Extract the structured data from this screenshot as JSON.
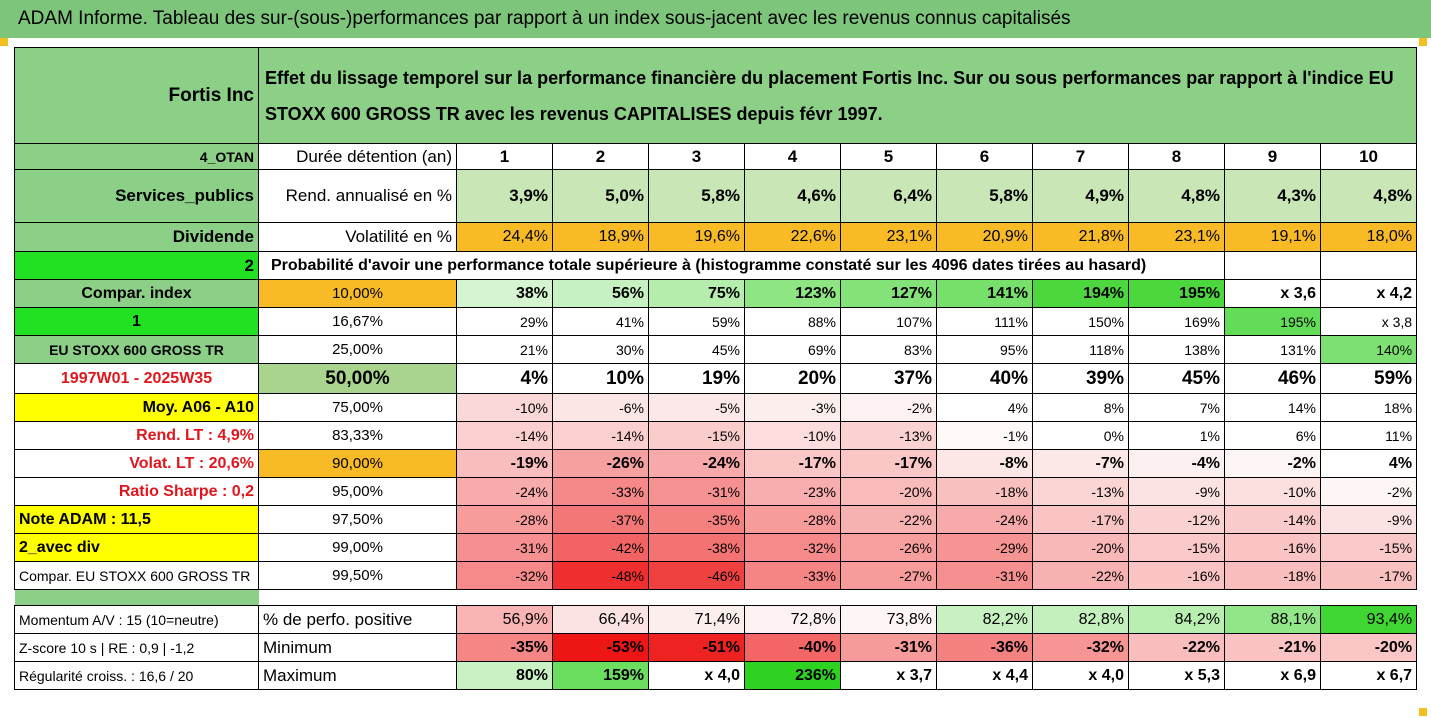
{
  "title": "ADAM Informe. Tableau des sur-(sous-)performances par rapport à un index sous-jacent avec les revenus connus capitalisés",
  "header": {
    "company": "Fortis Inc",
    "description_line1": "Effet du lissage temporel sur la performance financière du placement Fortis Inc. Sur ou sous performances par rapport à l'indice EU",
    "description_line2": "STOXX 600 GROSS TR avec les revenus CAPITALISES depuis févr 1997."
  },
  "colors": {
    "title_bg": "#7dc57a",
    "label_bg": "#8ccf87",
    "orange": "#f8bb26",
    "bright_green": "#22e022",
    "yellow": "#ffff00",
    "red_text": "#e0161c"
  },
  "labels": {
    "code": "4_OTAN",
    "sector": "Services_publics",
    "type": "Dividende",
    "num2": "2",
    "compar": "Compar. index",
    "num1": "1",
    "index_name": "EU STOXX 600 GROSS TR",
    "period": "1997W01 - 2025W35",
    "moy": "Moy. A06 - A10",
    "rend": "Rend. LT :   4,9%",
    "volat": "Volat. LT :   20,6%",
    "sharpe": "Ratio Sharpe :   0,2",
    "note": "Note ADAM : 11,5",
    "avec_div": "2_avec div",
    "compar_index": "Compar. EU STOXX 600 GROSS TR",
    "momentum": "Momentum A/V : 15 (10=neutre)",
    "zscore": "Z-score 10 s  |  RE : 0,9  |  -1,2",
    "regularite": "Régularité croiss. : 16,6 / 20"
  },
  "duration_label": "Durée détention (an)",
  "years": [
    "1",
    "2",
    "3",
    "4",
    "5",
    "6",
    "7",
    "8",
    "9",
    "10"
  ],
  "rend_label": "Rend. annualisé en %",
  "rend": [
    "3,9%",
    "5,0%",
    "5,8%",
    "4,6%",
    "6,4%",
    "5,8%",
    "4,9%",
    "4,8%",
    "4,3%",
    "4,8%"
  ],
  "vol_label": "Volatilité en %",
  "vol": [
    "24,4%",
    "18,9%",
    "19,6%",
    "22,6%",
    "23,1%",
    "20,9%",
    "21,8%",
    "23,1%",
    "19,1%",
    "18,0%"
  ],
  "prob_text": "Probabilité d'avoir une performance totale supérieure à (histogramme constaté sur les 4096 dates tirées au hasard)",
  "quantiles": [
    {
      "p": "10,00%",
      "v": [
        "38%",
        "56%",
        "75%",
        "123%",
        "127%",
        "141%",
        "194%",
        "195%",
        "x 3,6",
        "x 4,2"
      ]
    },
    {
      "p": "16,67%",
      "v": [
        "29%",
        "41%",
        "59%",
        "88%",
        "107%",
        "111%",
        "150%",
        "169%",
        "195%",
        "x 3,8"
      ]
    },
    {
      "p": "25,00%",
      "v": [
        "21%",
        "30%",
        "45%",
        "69%",
        "83%",
        "95%",
        "118%",
        "138%",
        "131%",
        "140%"
      ]
    },
    {
      "p": "50,00%",
      "v": [
        "4%",
        "10%",
        "19%",
        "20%",
        "37%",
        "40%",
        "39%",
        "45%",
        "46%",
        "59%"
      ]
    },
    {
      "p": "75,00%",
      "v": [
        "-10%",
        "-6%",
        "-5%",
        "-3%",
        "-2%",
        "4%",
        "8%",
        "7%",
        "14%",
        "18%"
      ]
    },
    {
      "p": "83,33%",
      "v": [
        "-14%",
        "-14%",
        "-15%",
        "-10%",
        "-13%",
        "-1%",
        "0%",
        "1%",
        "6%",
        "11%"
      ]
    },
    {
      "p": "90,00%",
      "v": [
        "-19%",
        "-26%",
        "-24%",
        "-17%",
        "-17%",
        "-8%",
        "-7%",
        "-4%",
        "-2%",
        "4%"
      ]
    },
    {
      "p": "95,00%",
      "v": [
        "-24%",
        "-33%",
        "-31%",
        "-23%",
        "-20%",
        "-18%",
        "-13%",
        "-9%",
        "-10%",
        "-2%"
      ]
    },
    {
      "p": "97,50%",
      "v": [
        "-28%",
        "-37%",
        "-35%",
        "-28%",
        "-22%",
        "-24%",
        "-17%",
        "-12%",
        "-14%",
        "-9%"
      ]
    },
    {
      "p": "99,00%",
      "v": [
        "-31%",
        "-42%",
        "-38%",
        "-32%",
        "-26%",
        "-29%",
        "-20%",
        "-15%",
        "-16%",
        "-15%"
      ]
    },
    {
      "p": "99,50%",
      "v": [
        "-32%",
        "-48%",
        "-46%",
        "-33%",
        "-27%",
        "-31%",
        "-22%",
        "-16%",
        "-18%",
        "-17%"
      ]
    }
  ],
  "quantile_colors": [
    [
      "#d5f5d0",
      "#c6f1c0",
      "#b4edac",
      "#8ee683",
      "#84e378",
      "#76e06a",
      "#4cd73f",
      "#4cd73f",
      "#ffffff",
      "#ffffff"
    ],
    [
      "#ffffff",
      "#ffffff",
      "#ffffff",
      "#ffffff",
      "#ffffff",
      "#ffffff",
      "#ffffff",
      "#ffffff",
      "#63dc57",
      "#ffffff"
    ],
    [
      "#ffffff",
      "#ffffff",
      "#ffffff",
      "#ffffff",
      "#ffffff",
      "#ffffff",
      "#ffffff",
      "#ffffff",
      "#ffffff",
      "#7ce170"
    ],
    [
      "#ffffff",
      "#ffffff",
      "#ffffff",
      "#ffffff",
      "#ffffff",
      "#ffffff",
      "#ffffff",
      "#ffffff",
      "#ffffff",
      "#ffffff"
    ],
    [
      "#fbd8d8",
      "#fce5e5",
      "#fce8e8",
      "#fdeeee",
      "#fdf1f1",
      "#ffffff",
      "#ffffff",
      "#ffffff",
      "#ffffff",
      "#ffffff"
    ],
    [
      "#fbcfcf",
      "#fbcfcf",
      "#fbcccc",
      "#fcdcdc",
      "#fbd2d2",
      "#fef8f8",
      "#ffffff",
      "#ffffff",
      "#ffffff",
      "#ffffff"
    ],
    [
      "#f9bdbd",
      "#f7a0a0",
      "#f8a9a9",
      "#fac6c6",
      "#fac6c6",
      "#fde6e6",
      "#fde8e8",
      "#fdf0f0",
      "#fef5f5",
      "#ffffff"
    ],
    [
      "#f8abab",
      "#f58888",
      "#f69191",
      "#f8aeae",
      "#f9baba",
      "#f9c0c0",
      "#fbd4d4",
      "#fce3e3",
      "#fce0e0",
      "#fef5f5"
    ],
    [
      "#f79b9b",
      "#f37777",
      "#f48080",
      "#f79b9b",
      "#f8b1b1",
      "#f8a9a9",
      "#fac4c4",
      "#fbd2d2",
      "#fbcaca",
      "#fce3e3"
    ],
    [
      "#f68f8f",
      "#f26464",
      "#f37373",
      "#f68a8a",
      "#f79f9f",
      "#f69494",
      "#f9b8b8",
      "#fac8c8",
      "#fac4c4",
      "#fac8c8"
    ],
    [
      "#f68a8a",
      "#ef2f2f",
      "#f04141",
      "#f58585",
      "#f79b9b",
      "#f68f8f",
      "#f8b1b1",
      "#fac4c4",
      "#f9bdbd",
      "#f9c0c0"
    ]
  ],
  "pos_label": "% de perfo. positive",
  "pos": [
    "56,9%",
    "66,4%",
    "71,4%",
    "72,8%",
    "73,8%",
    "82,2%",
    "82,8%",
    "84,2%",
    "88,1%",
    "93,4%"
  ],
  "pos_colors": [
    "#f9b3b3",
    "#fce3e3",
    "#fdeeee",
    "#fdf1f1",
    "#fef6f6",
    "#c8f1c1",
    "#c4f0bd",
    "#b9eeb1",
    "#91e687",
    "#3fd533"
  ],
  "min_label": "Minimum",
  "min": [
    "-35%",
    "-53%",
    "-51%",
    "-40%",
    "-31%",
    "-36%",
    "-32%",
    "-22%",
    "-21%",
    "-20%"
  ],
  "min_colors": [
    "#f68585",
    "#ee1515",
    "#ef2222",
    "#f46565",
    "#f79a9a",
    "#f58080",
    "#f79595",
    "#f9bdbd",
    "#fac2c2",
    "#fac6c6"
  ],
  "max_label": "Maximum",
  "max": [
    "80%",
    "159%",
    "x 4,0",
    "236%",
    "x 3,7",
    "x 4,4",
    "x 4,0",
    "x 5,3",
    "x 6,9",
    "x 6,7"
  ],
  "max_colors": [
    "#c9f2c2",
    "#6bde5f",
    "#ffffff",
    "#2dd320",
    "#ffffff",
    "#ffffff",
    "#ffffff",
    "#ffffff",
    "#ffffff",
    "#ffffff"
  ]
}
